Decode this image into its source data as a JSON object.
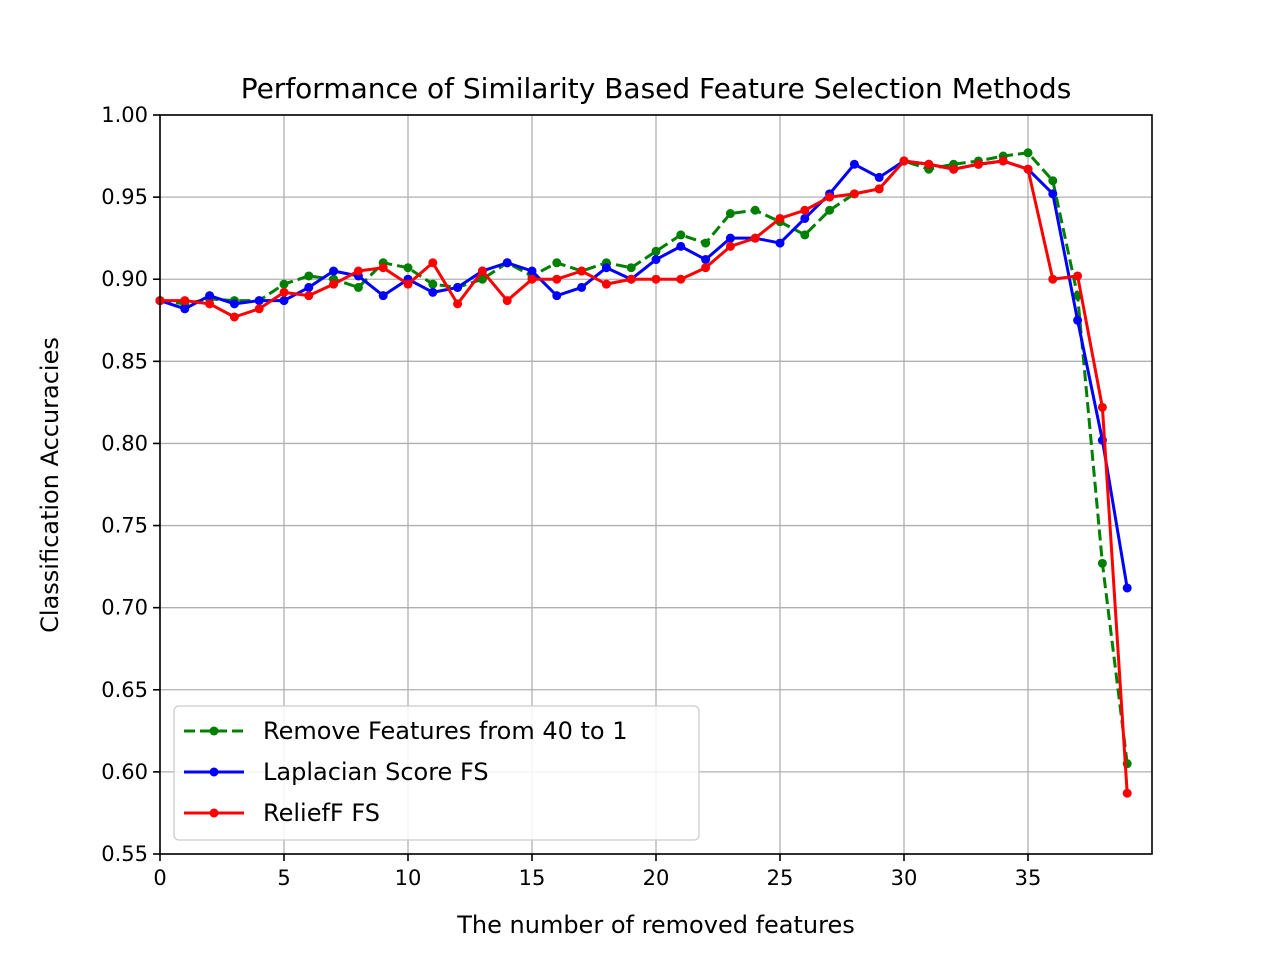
{
  "chart_data": {
    "type": "line",
    "title": "Performance of Similarity Based Feature Selection Methods",
    "xlabel": "The number of removed features",
    "ylabel": "Classification Accuracies",
    "xlim": [
      0,
      40
    ],
    "ylim": [
      0.55,
      1.0
    ],
    "xticks": [
      0,
      5,
      10,
      15,
      20,
      25,
      30,
      35
    ],
    "xtick_labels": [
      "0",
      "5",
      "10",
      "15",
      "20",
      "25",
      "30",
      "35"
    ],
    "yticks": [
      0.55,
      0.6,
      0.65,
      0.7,
      0.75,
      0.8,
      0.85,
      0.9,
      0.95,
      1.0
    ],
    "ytick_labels": [
      "0.55",
      "0.60",
      "0.65",
      "0.70",
      "0.75",
      "0.80",
      "0.85",
      "0.90",
      "0.95",
      "1.00"
    ],
    "grid": true,
    "legend_position": "lower-left",
    "x": [
      0,
      1,
      2,
      3,
      4,
      5,
      6,
      7,
      8,
      9,
      10,
      11,
      12,
      13,
      14,
      15,
      16,
      17,
      18,
      19,
      20,
      21,
      22,
      23,
      24,
      25,
      26,
      27,
      28,
      29,
      30,
      31,
      32,
      33,
      34,
      35,
      36,
      37,
      38,
      39
    ],
    "series": [
      {
        "name": "Remove Features from 40 to 1",
        "color": "#008000",
        "dashed": true,
        "values": [
          0.887,
          0.885,
          0.888,
          0.887,
          0.887,
          0.897,
          0.902,
          0.9,
          0.895,
          0.91,
          0.907,
          0.897,
          0.895,
          0.9,
          0.91,
          0.902,
          0.91,
          0.905,
          0.91,
          0.907,
          0.917,
          0.927,
          0.922,
          0.94,
          0.942,
          0.935,
          0.927,
          0.942,
          0.952,
          0.955,
          0.972,
          0.967,
          0.97,
          0.972,
          0.975,
          0.977,
          0.96,
          0.89,
          0.727,
          0.605
        ]
      },
      {
        "name": "Laplacian Score FS",
        "color": "#0000ff",
        "dashed": false,
        "values": [
          0.887,
          0.882,
          0.89,
          0.885,
          0.887,
          0.887,
          0.895,
          0.905,
          0.902,
          0.89,
          0.9,
          0.892,
          0.895,
          0.905,
          0.91,
          0.905,
          0.89,
          0.895,
          0.907,
          0.9,
          0.912,
          0.92,
          0.912,
          0.925,
          0.925,
          0.922,
          0.937,
          0.952,
          0.97,
          0.962,
          0.972,
          0.97,
          0.967,
          0.97,
          0.972,
          0.967,
          0.952,
          0.875,
          0.802,
          0.712
        ]
      },
      {
        "name": "ReliefF FS",
        "color": "#ff0000",
        "dashed": false,
        "values": [
          0.887,
          0.887,
          0.885,
          0.877,
          0.882,
          0.892,
          0.89,
          0.897,
          0.905,
          0.907,
          0.897,
          0.91,
          0.885,
          0.905,
          0.887,
          0.9,
          0.9,
          0.905,
          0.897,
          0.9,
          0.9,
          0.9,
          0.907,
          0.92,
          0.925,
          0.937,
          0.942,
          0.95,
          0.952,
          0.955,
          0.972,
          0.97,
          0.967,
          0.97,
          0.972,
          0.967,
          0.9,
          0.902,
          0.822,
          0.587
        ]
      }
    ]
  }
}
